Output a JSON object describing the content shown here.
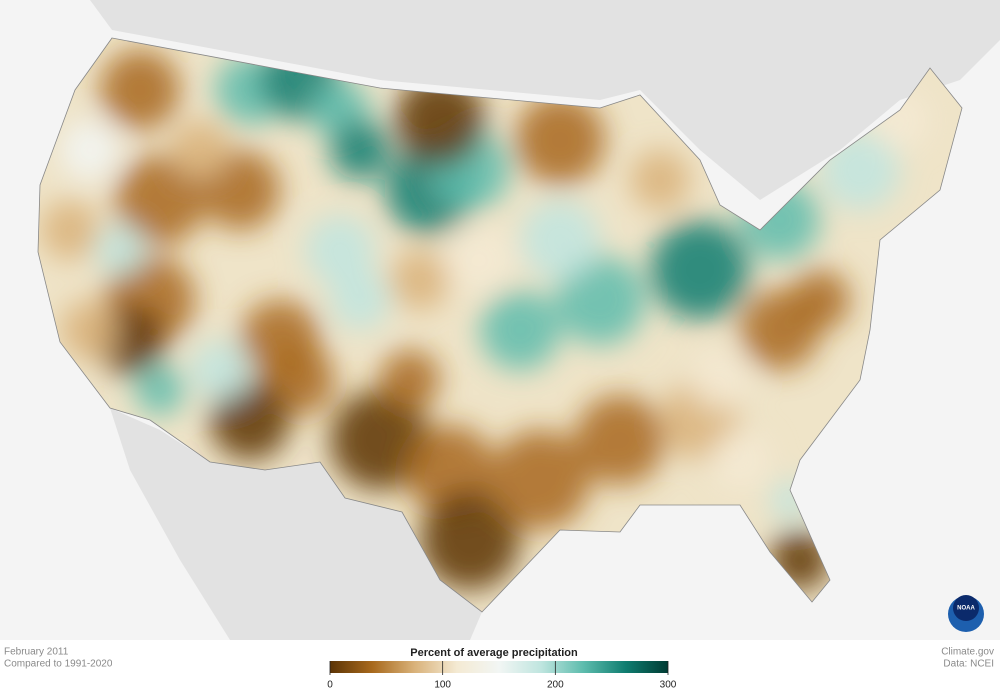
{
  "caption": {
    "date": "February 2011",
    "baseline": "Compared to 1991-2020"
  },
  "credits": {
    "source": "Climate.gov",
    "data": "Data: NCEI",
    "logo": "NOAA"
  },
  "legend": {
    "title": "Percent of average precipitation",
    "range": [
      0,
      300
    ],
    "ticks": [
      0,
      100,
      200,
      300
    ],
    "colors": [
      "#5c3405",
      "#a8691c",
      "#d9b27a",
      "#f4ead3",
      "#f2f6f4",
      "#bfe5df",
      "#5dbcad",
      "#0f7d70",
      "#003b33"
    ]
  }
}
